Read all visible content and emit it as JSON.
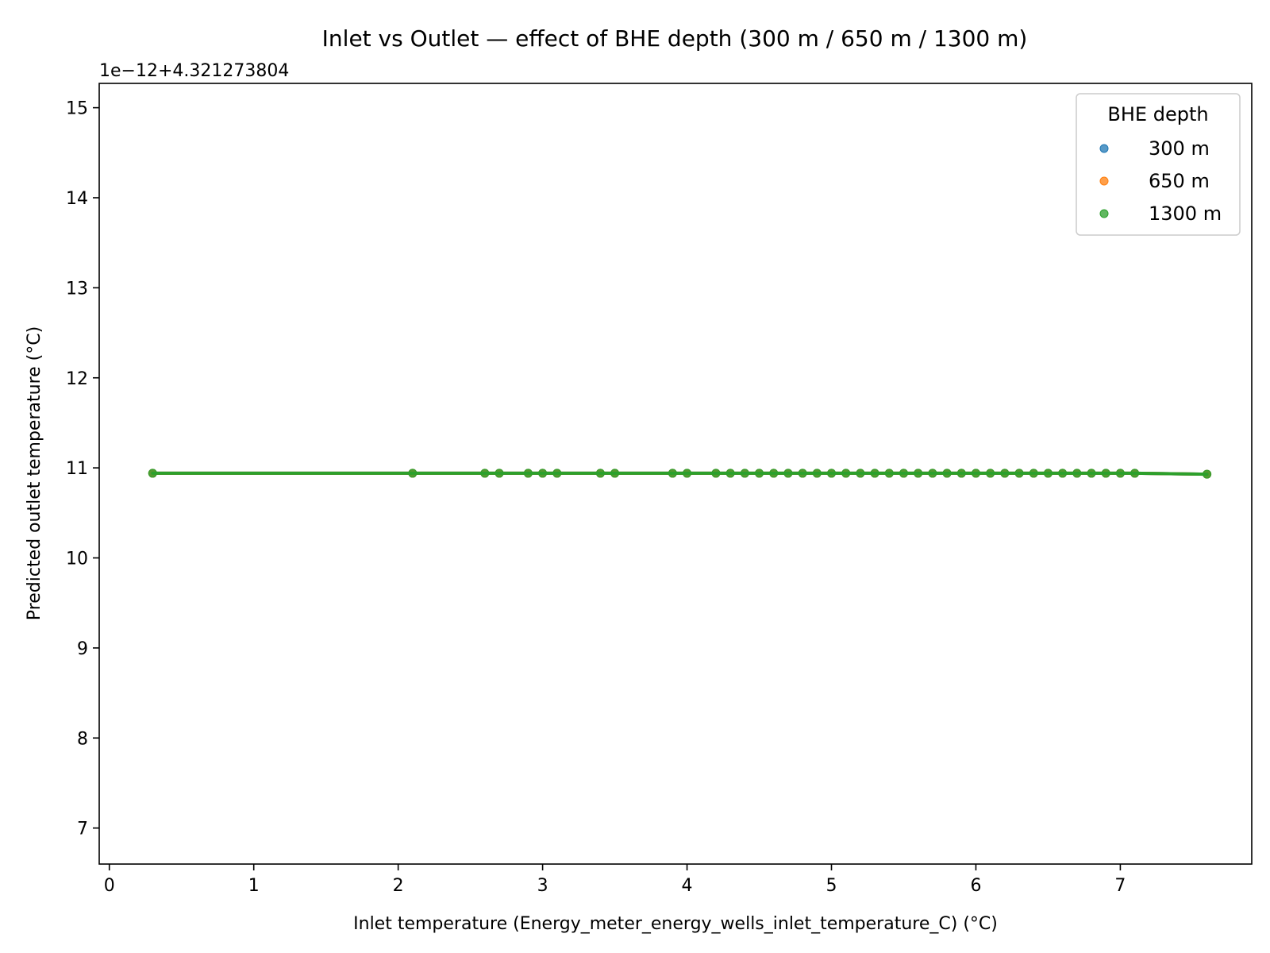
{
  "chart_data": {
    "type": "scatter",
    "title": "Inlet vs Outlet — effect of BHE depth (300 m / 650 m / 1300 m)",
    "xlabel": "Inlet temperature (Energy_meter_energy_wells_inlet_temperature_C) (°C)",
    "ylabel": "Predicted outlet temperature (°C)",
    "y_offset_text": "1e−12+4.321273804",
    "xlim": [
      -0.07,
      7.91
    ],
    "ylim": [
      6.6,
      15.27
    ],
    "x_ticks": [
      0,
      1,
      2,
      3,
      4,
      5,
      6,
      7
    ],
    "x_tick_labels": [
      "0",
      "1",
      "2",
      "3",
      "4",
      "5",
      "6",
      "7"
    ],
    "y_ticks": [
      7,
      8,
      9,
      10,
      11,
      12,
      13,
      14,
      15
    ],
    "y_tick_labels": [
      "7",
      "8",
      "9",
      "10",
      "11",
      "12",
      "13",
      "14",
      "15"
    ],
    "grid": false,
    "legend_title": "BHE depth",
    "legend_position": "top-right",
    "x": [
      0.3,
      2.1,
      2.6,
      2.7,
      2.9,
      3.0,
      3.1,
      3.4,
      3.5,
      3.9,
      4.0,
      4.2,
      4.3,
      4.4,
      4.5,
      4.6,
      4.7,
      4.8,
      4.9,
      5.0,
      5.1,
      5.2,
      5.3,
      5.4,
      5.5,
      5.6,
      5.7,
      5.8,
      5.9,
      6.0,
      6.1,
      6.2,
      6.3,
      6.4,
      6.5,
      6.6,
      6.7,
      6.8,
      6.9,
      7.0,
      7.1,
      7.6
    ],
    "series": [
      {
        "name": "300 m",
        "color": "#1f77b4",
        "y": [
          10.94,
          10.94,
          10.94,
          10.94,
          10.94,
          10.94,
          10.94,
          10.94,
          10.94,
          10.94,
          10.94,
          10.94,
          10.94,
          10.94,
          10.94,
          10.94,
          10.94,
          10.94,
          10.94,
          10.94,
          10.94,
          10.94,
          10.94,
          10.94,
          10.94,
          10.94,
          10.94,
          10.94,
          10.94,
          10.94,
          10.94,
          10.94,
          10.94,
          10.94,
          10.94,
          10.94,
          10.94,
          10.94,
          10.94,
          10.94,
          10.94,
          10.93
        ]
      },
      {
        "name": "650 m",
        "color": "#ff7f0e",
        "y": [
          10.94,
          10.94,
          10.94,
          10.94,
          10.94,
          10.94,
          10.94,
          10.94,
          10.94,
          10.94,
          10.94,
          10.94,
          10.94,
          10.94,
          10.94,
          10.94,
          10.94,
          10.94,
          10.94,
          10.94,
          10.94,
          10.94,
          10.94,
          10.94,
          10.94,
          10.94,
          10.94,
          10.94,
          10.94,
          10.94,
          10.94,
          10.94,
          10.94,
          10.94,
          10.94,
          10.94,
          10.94,
          10.94,
          10.94,
          10.94,
          10.94,
          10.93
        ]
      },
      {
        "name": "1300 m",
        "color": "#2ca02c",
        "y": [
          10.94,
          10.94,
          10.94,
          10.94,
          10.94,
          10.94,
          10.94,
          10.94,
          10.94,
          10.94,
          10.94,
          10.94,
          10.94,
          10.94,
          10.94,
          10.94,
          10.94,
          10.94,
          10.94,
          10.94,
          10.94,
          10.94,
          10.94,
          10.94,
          10.94,
          10.94,
          10.94,
          10.94,
          10.94,
          10.94,
          10.94,
          10.94,
          10.94,
          10.94,
          10.94,
          10.94,
          10.94,
          10.94,
          10.94,
          10.94,
          10.94,
          10.93
        ]
      }
    ]
  }
}
